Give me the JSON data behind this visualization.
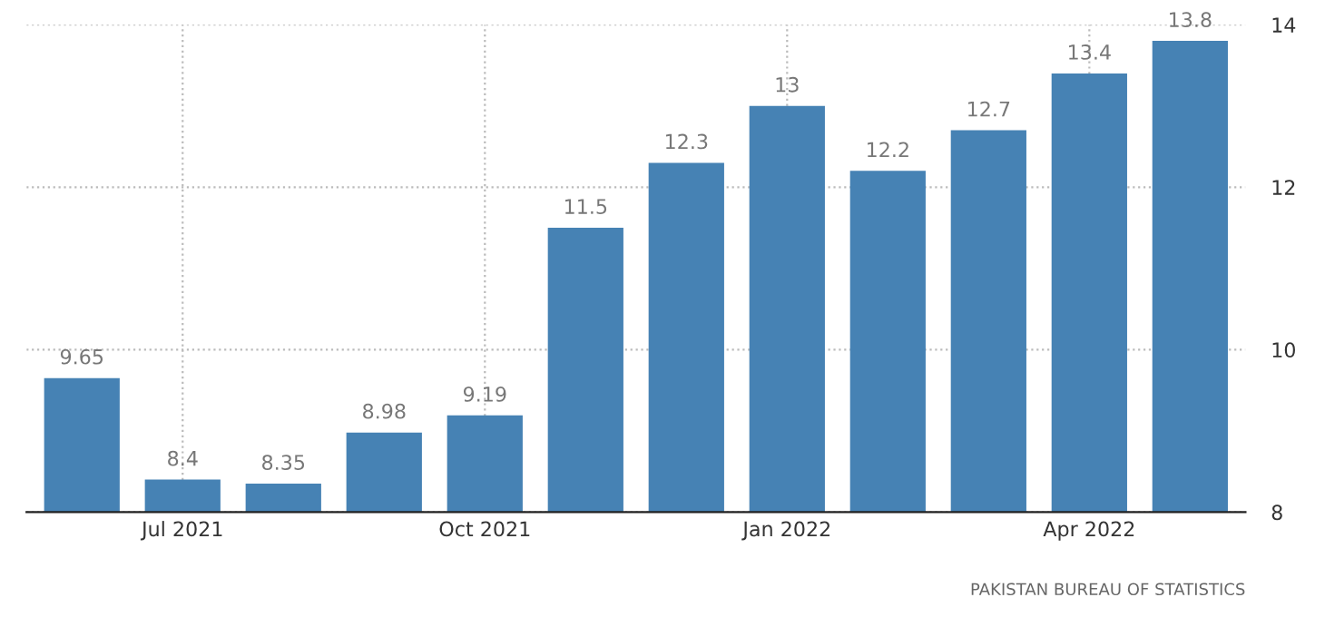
{
  "chart_data": {
    "type": "bar",
    "categories": [
      null,
      "Jul 2021",
      null,
      null,
      "Oct 2021",
      null,
      null,
      "Jan 2022",
      null,
      null,
      "Apr 2022",
      null
    ],
    "values": [
      9.65,
      8.4,
      8.35,
      8.98,
      9.19,
      11.5,
      12.3,
      13,
      12.2,
      12.7,
      13.4,
      13.8
    ],
    "value_labels": [
      "9.65",
      "8.4",
      "8.35",
      "8.98",
      "9.19",
      "11.5",
      "12.3",
      "13",
      "12.2",
      "12.7",
      "13.4",
      "13.8"
    ],
    "color": "#4682b4",
    "ylim": [
      8,
      14
    ],
    "yticks": [
      8,
      10,
      12,
      14
    ],
    "grid": true,
    "annotations": [
      "PAKISTAN BUREAU OF STATISTICS"
    ]
  }
}
